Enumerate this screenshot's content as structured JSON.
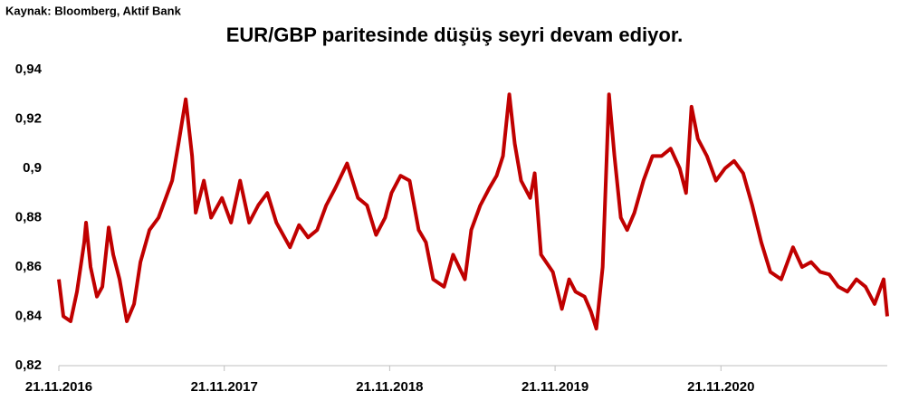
{
  "chart_data": {
    "type": "line",
    "source": "Kaynak: Bloomberg, Aktif Bank",
    "title": "EUR/GBP  paritesinde düşüş seyri devam ediyor.",
    "x": [
      "21.11.2016",
      "01.12.2016",
      "17.12.2016",
      "31.12.2016",
      "16.01.2017",
      "20.01.2017",
      "30.01.2017",
      "13.02.2017",
      "25.02.2017",
      "11.03.2017",
      "21.03.2017",
      "04.04.2017",
      "20.04.2017",
      "06.05.2017",
      "20.05.2017",
      "09.06.2017",
      "29.06.2017",
      "15.07.2017",
      "29.07.2017",
      "12.08.2017",
      "28.08.2017",
      "11.09.2017",
      "19.09.2017",
      "07.10.2017",
      "23.10.2017",
      "16.11.2017",
      "06.12.2017",
      "26.12.2017",
      "15.01.2018",
      "04.02.2018",
      "24.02.2018",
      "16.03.2018",
      "15.04.2018",
      "05.05.2018",
      "25.05.2018",
      "14.06.2018",
      "04.07.2018",
      "24.07.2018",
      "19.08.2018",
      "12.09.2018",
      "02.10.2018",
      "22.10.2018",
      "11.11.2018",
      "25.11.2018",
      "15.12.2018",
      "04.01.2019",
      "24.01.2019",
      "09.02.2019",
      "25.02.2019",
      "21.03.2019",
      "10.04.2019",
      "06.05.2019",
      "20.05.2019",
      "09.06.2019",
      "29.06.2019",
      "15.07.2019",
      "29.07.2019",
      "12.08.2019",
      "24.08.2019",
      "07.09.2019",
      "27.09.2019",
      "07.10.2019",
      "21.10.2019",
      "16.11.2019",
      "06.12.2019",
      "22.12.2019",
      "05.01.2020",
      "25.01.2020",
      "08.02.2020",
      "20.02.2020",
      "05.03.2020",
      "19.03.2020",
      "31.03.2020",
      "14.04.2020",
      "28.04.2020",
      "14.05.2020",
      "03.06.2020",
      "23.06.2020",
      "13.07.2020",
      "02.08.2020",
      "22.08.2020",
      "05.09.2020",
      "17.09.2020",
      "01.10.2020",
      "21.10.2020",
      "10.11.2020",
      "30.11.2020",
      "20.12.2020",
      "09.01.2021",
      "29.01.2021",
      "18.02.2021",
      "10.03.2021",
      "03.04.2021",
      "29.04.2021",
      "19.05.2021",
      "08.06.2021",
      "28.06.2021",
      "18.07.2021",
      "07.08.2021",
      "27.08.2021",
      "16.09.2021",
      "06.10.2021",
      "26.10.2021",
      "15.11.2021",
      "23.11.2021"
    ],
    "series": [
      {
        "name": "EUR/GBP",
        "color": "#c00000",
        "values": [
          0.855,
          0.84,
          0.838,
          0.85,
          0.87,
          0.878,
          0.86,
          0.848,
          0.852,
          0.876,
          0.865,
          0.855,
          0.838,
          0.845,
          0.862,
          0.875,
          0.88,
          0.888,
          0.895,
          0.91,
          0.928,
          0.905,
          0.882,
          0.895,
          0.88,
          0.888,
          0.878,
          0.895,
          0.878,
          0.885,
          0.89,
          0.878,
          0.868,
          0.877,
          0.872,
          0.875,
          0.885,
          0.892,
          0.902,
          0.888,
          0.885,
          0.873,
          0.88,
          0.89,
          0.897,
          0.895,
          0.875,
          0.87,
          0.855,
          0.852,
          0.865,
          0.855,
          0.875,
          0.885,
          0.892,
          0.897,
          0.905,
          0.93,
          0.91,
          0.895,
          0.888,
          0.898,
          0.865,
          0.858,
          0.843,
          0.855,
          0.85,
          0.848,
          0.842,
          0.835,
          0.86,
          0.93,
          0.905,
          0.88,
          0.875,
          0.882,
          0.895,
          0.905,
          0.905,
          0.908,
          0.9,
          0.89,
          0.925,
          0.912,
          0.905,
          0.895,
          0.9,
          0.903,
          0.898,
          0.885,
          0.87,
          0.858,
          0.855,
          0.868,
          0.86,
          0.862,
          0.858,
          0.857,
          0.852,
          0.85,
          0.855,
          0.852,
          0.845,
          0.855,
          0.84
        ]
      }
    ],
    "xlim": [
      "21.11.2016",
      "23.11.2021"
    ],
    "xticks": [
      "21.11.2016",
      "21.11.2017",
      "21.11.2018",
      "21.11.2019",
      "21.11.2020"
    ],
    "ylim": [
      0.82,
      0.94
    ],
    "yticks": [
      {
        "value": 0.82,
        "label": "0,82"
      },
      {
        "value": 0.84,
        "label": "0,84"
      },
      {
        "value": 0.86,
        "label": "0,86"
      },
      {
        "value": 0.88,
        "label": "0,88"
      },
      {
        "value": 0.9,
        "label": "0,9"
      },
      {
        "value": 0.92,
        "label": "0,92"
      },
      {
        "value": 0.94,
        "label": "0,94"
      }
    ]
  }
}
